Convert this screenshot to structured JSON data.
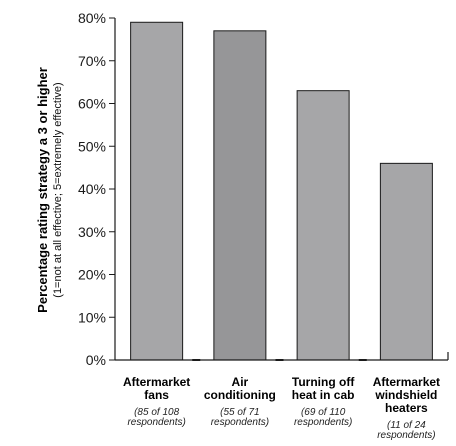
{
  "chart_data": {
    "type": "bar",
    "categories": [
      {
        "lines": [
          "Aftermarket",
          "fans"
        ],
        "note": [
          "(85 of 108",
          "respondents)"
        ]
      },
      {
        "lines": [
          "Air",
          "conditioning"
        ],
        "note": [
          "(55 of 71",
          "respondents)"
        ]
      },
      {
        "lines": [
          "Turning off",
          "heat in cab"
        ],
        "note": [
          "(69 of 110",
          "respondents)"
        ]
      },
      {
        "lines": [
          "Aftermarket",
          "windshield",
          "heaters"
        ],
        "note": [
          "(11 of 24",
          "respondents)"
        ]
      }
    ],
    "values": [
      79,
      77,
      63,
      46
    ],
    "ylabel": "Percentage rating strategy a 3 or higher",
    "ylabel_sub": "(1=not at all effective; 5=extremely effective)",
    "ylim": [
      0,
      80
    ],
    "yticks": [
      "0%",
      "10%",
      "20%",
      "30%",
      "40%",
      "50%",
      "60%",
      "70%",
      "80%"
    ],
    "colors": {
      "bar": "#a6a6a8",
      "bar_dark": "#969698",
      "stroke": "#1a1a1a"
    }
  }
}
